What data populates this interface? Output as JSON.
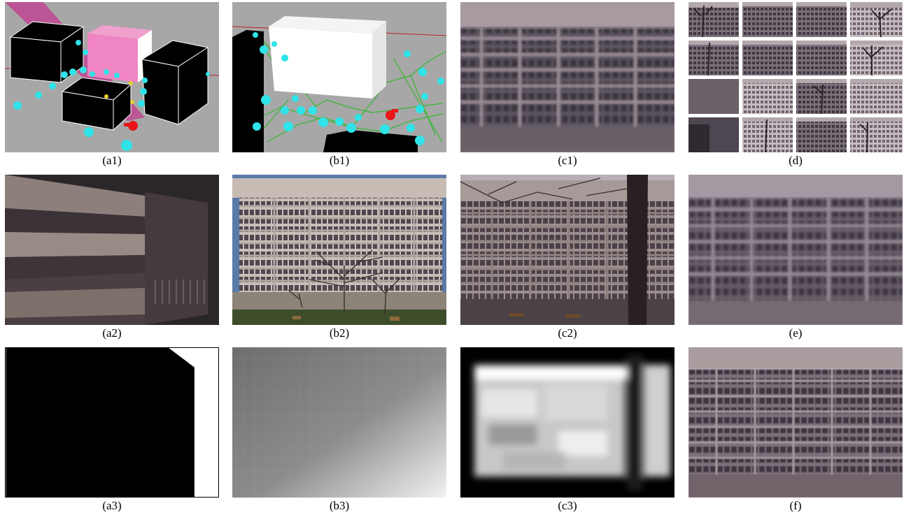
{
  "figure": {
    "captions": {
      "a1": "(a1)",
      "b1": "(b1)",
      "c1": "(c1)",
      "d": "(d)",
      "a2": "(a2)",
      "b2": "(b2)",
      "c2": "(c2)",
      "e": "(e)",
      "a3": "(a3)",
      "b3": "(b3)",
      "c3": "(c3)",
      "f": "(f)"
    },
    "colors": {
      "ground": "#a6a6a6",
      "camera": "#2fe3e8",
      "selected_camera": "#e8161a",
      "frustum": "#d03c95",
      "edge": "#2ec02a",
      "facade": "#6e5e6a",
      "sky": "#b8b0bf"
    },
    "icons": [
      "camera-icon",
      "selected-camera-icon",
      "building-block-icon"
    ]
  }
}
